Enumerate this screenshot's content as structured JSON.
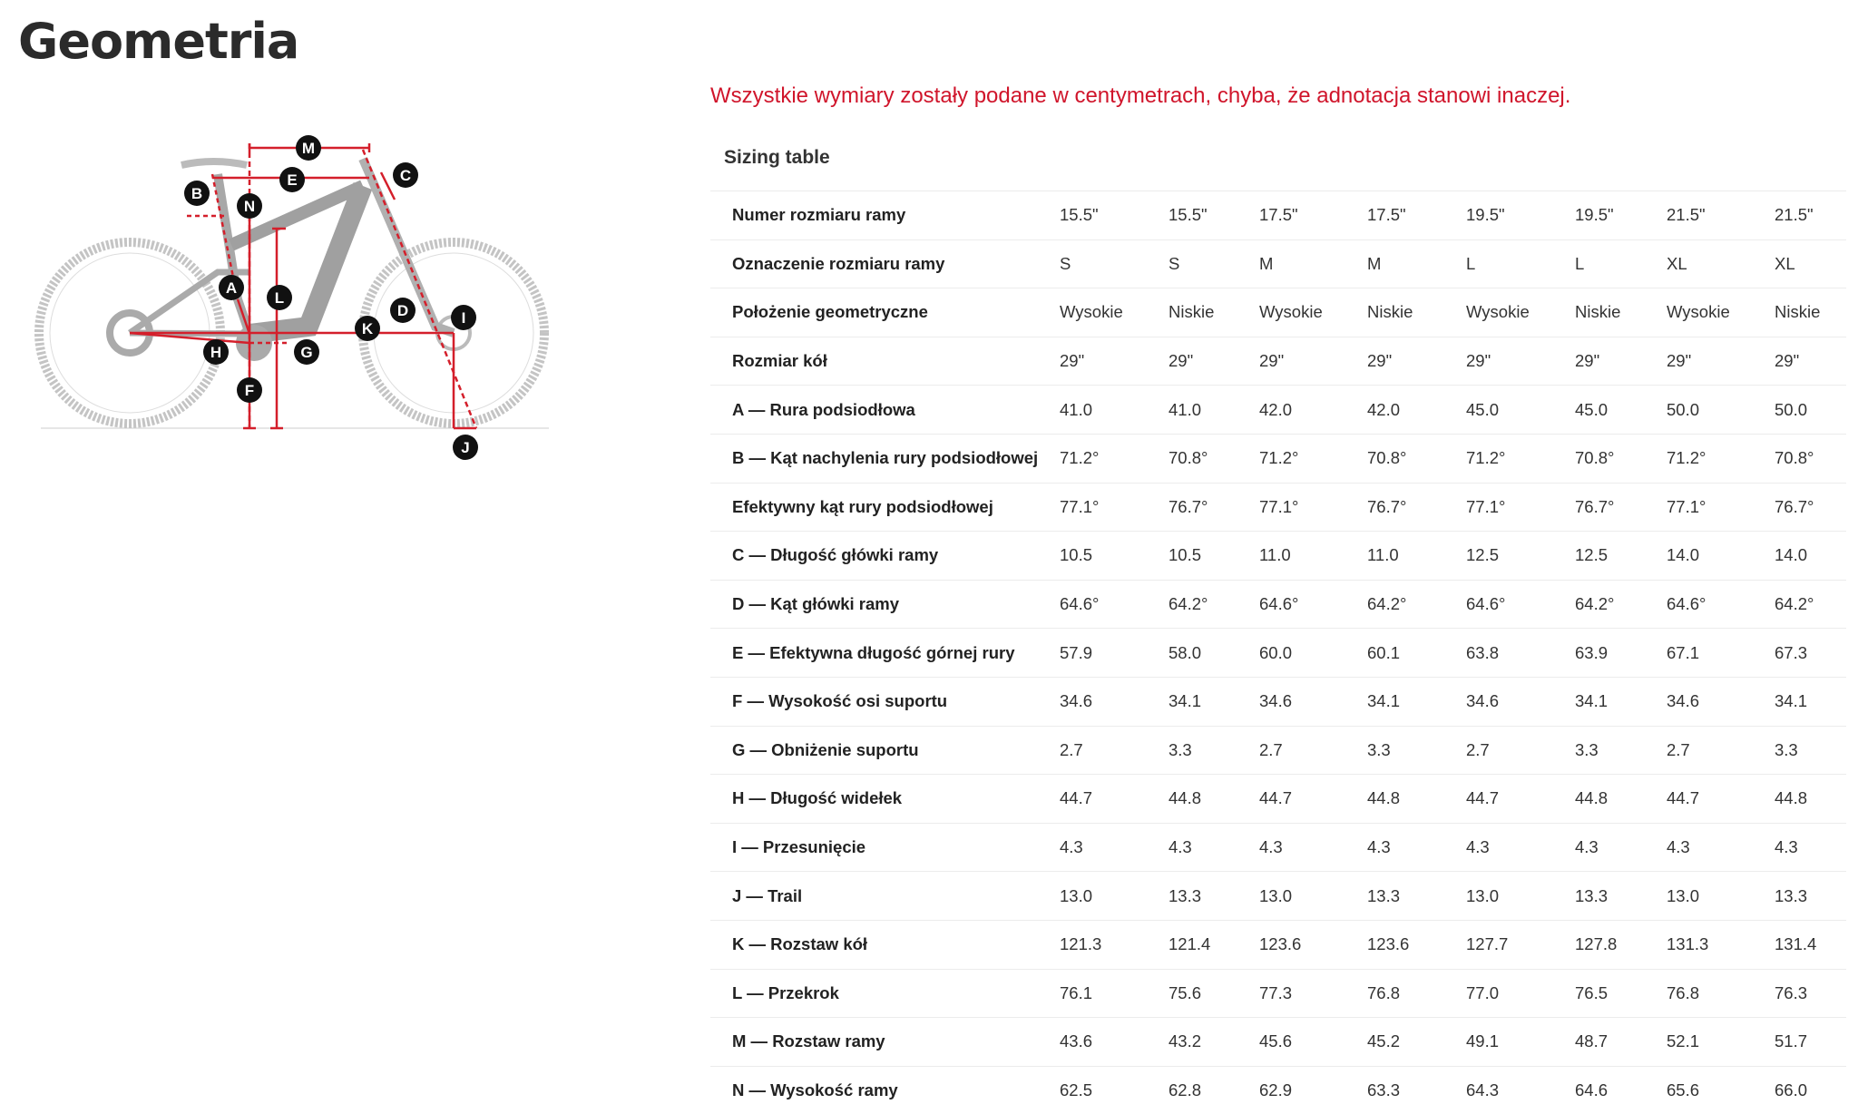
{
  "title": "Geometria",
  "note": "Wszystkie wymiary zostały podane w centymetrach, chyba, że adnotacja stanowi inaczej.",
  "sizing_title": "Sizing table",
  "diagram_labels": {
    "A": "A",
    "B": "B",
    "C": "C",
    "D": "D",
    "E": "E",
    "F": "F",
    "G": "G",
    "H": "H",
    "I": "I",
    "J": "J",
    "K": "K",
    "L": "L",
    "M": "M",
    "N": "N"
  },
  "colors": {
    "accent": "#d0152b",
    "measure_lines": "#d41f2b",
    "bike": "#bdbdbd"
  },
  "rows": [
    {
      "label": "Numer rozmiaru ramy",
      "values": [
        "15.5\"",
        "15.5\"",
        "17.5\"",
        "17.5\"",
        "19.5\"",
        "19.5\"",
        "21.5\"",
        "21.5\""
      ]
    },
    {
      "label": "Oznaczenie rozmiaru ramy",
      "values": [
        "S",
        "S",
        "M",
        "M",
        "L",
        "L",
        "XL",
        "XL"
      ]
    },
    {
      "label": "Położenie geometryczne",
      "values": [
        "Wysokie",
        "Niskie",
        "Wysokie",
        "Niskie",
        "Wysokie",
        "Niskie",
        "Wysokie",
        "Niskie"
      ]
    },
    {
      "label": "Rozmiar kół",
      "values": [
        "29\"",
        "29\"",
        "29\"",
        "29\"",
        "29\"",
        "29\"",
        "29\"",
        "29\""
      ]
    },
    {
      "label": "A — Rura podsiodłowa",
      "values": [
        "41.0",
        "41.0",
        "42.0",
        "42.0",
        "45.0",
        "45.0",
        "50.0",
        "50.0"
      ]
    },
    {
      "label": "B — Kąt nachylenia rury podsiodłowej",
      "values": [
        "71.2°",
        "70.8°",
        "71.2°",
        "70.8°",
        "71.2°",
        "70.8°",
        "71.2°",
        "70.8°"
      ]
    },
    {
      "label": "Efektywny kąt rury podsiodłowej",
      "values": [
        "77.1°",
        "76.7°",
        "77.1°",
        "76.7°",
        "77.1°",
        "76.7°",
        "77.1°",
        "76.7°"
      ]
    },
    {
      "label": "C — Długość główki ramy",
      "values": [
        "10.5",
        "10.5",
        "11.0",
        "11.0",
        "12.5",
        "12.5",
        "14.0",
        "14.0"
      ]
    },
    {
      "label": "D — Kąt główki ramy",
      "values": [
        "64.6°",
        "64.2°",
        "64.6°",
        "64.2°",
        "64.6°",
        "64.2°",
        "64.6°",
        "64.2°"
      ]
    },
    {
      "label": "E — Efektywna długość górnej rury",
      "values": [
        "57.9",
        "58.0",
        "60.0",
        "60.1",
        "63.8",
        "63.9",
        "67.1",
        "67.3"
      ]
    },
    {
      "label": "F — Wysokość osi suportu",
      "values": [
        "34.6",
        "34.1",
        "34.6",
        "34.1",
        "34.6",
        "34.1",
        "34.6",
        "34.1"
      ]
    },
    {
      "label": "G — Obniżenie suportu",
      "values": [
        "2.7",
        "3.3",
        "2.7",
        "3.3",
        "2.7",
        "3.3",
        "2.7",
        "3.3"
      ]
    },
    {
      "label": "H — Długość widełek",
      "values": [
        "44.7",
        "44.8",
        "44.7",
        "44.8",
        "44.7",
        "44.8",
        "44.7",
        "44.8"
      ]
    },
    {
      "label": "I — Przesunięcie",
      "values": [
        "4.3",
        "4.3",
        "4.3",
        "4.3",
        "4.3",
        "4.3",
        "4.3",
        "4.3"
      ]
    },
    {
      "label": "J — Trail",
      "values": [
        "13.0",
        "13.3",
        "13.0",
        "13.3",
        "13.0",
        "13.3",
        "13.0",
        "13.3"
      ]
    },
    {
      "label": "K — Rozstaw kół",
      "values": [
        "121.3",
        "121.4",
        "123.6",
        "123.6",
        "127.7",
        "127.8",
        "131.3",
        "131.4"
      ]
    },
    {
      "label": "L — Przekrok",
      "values": [
        "76.1",
        "75.6",
        "77.3",
        "76.8",
        "77.0",
        "76.5",
        "76.8",
        "76.3"
      ]
    },
    {
      "label": "M — Rozstaw ramy",
      "values": [
        "43.6",
        "43.2",
        "45.6",
        "45.2",
        "49.1",
        "48.7",
        "52.1",
        "51.7"
      ]
    },
    {
      "label": "N — Wysokość ramy",
      "values": [
        "62.5",
        "62.8",
        "62.9",
        "63.3",
        "64.3",
        "64.6",
        "65.6",
        "66.0"
      ]
    }
  ]
}
